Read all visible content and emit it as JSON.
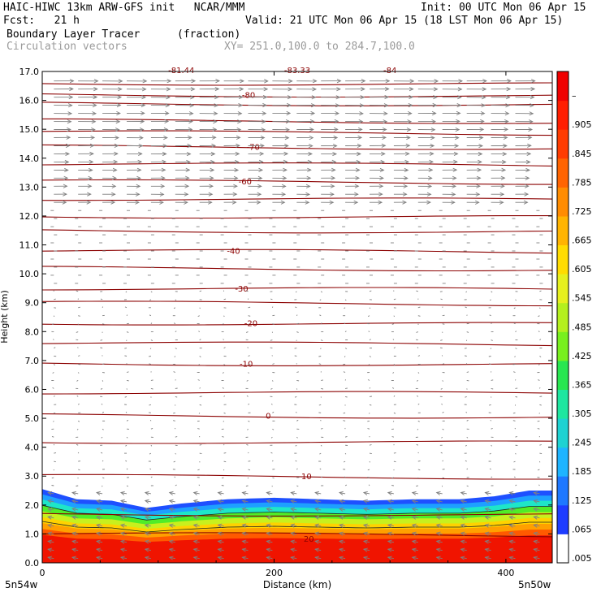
{
  "header": {
    "title_left": "HAIC-HIWC 13km ARW-GFS init   NCAR/MMM",
    "init": "Init: 00 UTC Mon 06 Apr 15",
    "fcst": "Fcst:   21 h",
    "valid": "Valid: 21 UTC Mon 06 Apr 15 (18 LST Mon 06 Apr 15)",
    "field_name": "Boundary Layer Tracer",
    "field_units": "(fraction)",
    "vector_name": "Circulation vectors",
    "xy_range": "XY= 251.0,100.0 to 284.7,100.0"
  },
  "axes": {
    "ylabel": "Height (km)",
    "xlabel": "Distance (km)",
    "left_point": "5n54w",
    "right_point": "5n50w"
  },
  "chart_data": {
    "type": "heatmap",
    "x_range_km": [
      0,
      440
    ],
    "y_range_km": [
      0,
      17
    ],
    "x_ticks": [
      "0",
      "200",
      "400"
    ],
    "x_tick_values": [
      0,
      200,
      400
    ],
    "y_ticks": [
      "0.0",
      "1.0",
      "2.0",
      "3.0",
      "4.0",
      "5.0",
      "6.0",
      "7.0",
      "8.0",
      "9.0",
      "10.0",
      "11.0",
      "12.0",
      "13.0",
      "14.0",
      "15.0",
      "16.0",
      "17.0"
    ],
    "y_tick_values": [
      0,
      1,
      2,
      3,
      4,
      5,
      6,
      7,
      8,
      9,
      10,
      11,
      12,
      13,
      14,
      15,
      16,
      17
    ],
    "colorbar_labels": [
      ".005",
      ".065",
      ".125",
      ".185",
      ".245",
      ".305",
      ".365",
      ".425",
      ".485",
      ".545",
      ".605",
      ".665",
      ".725",
      ".785",
      ".845",
      ".905",
      "–"
    ],
    "colorbar_colors": [
      "#ffffff",
      "#1e3cff",
      "#1e78ff",
      "#1eb4ff",
      "#1ed2d2",
      "#1ee6a0",
      "#28e650",
      "#78f01e",
      "#b4f01e",
      "#e6f01e",
      "#ffdc00",
      "#ffb400",
      "#ff8c00",
      "#ff6400",
      "#ff3c00",
      "#ff1e00",
      "#f00000"
    ],
    "tracer_top_km": [
      2.55,
      2.2,
      2.15,
      1.9,
      2.05,
      2.2,
      2.25,
      2.2,
      2.15,
      2.2,
      2.2,
      2.3,
      2.5,
      2.5
    ],
    "tracer_top_x_km": [
      0,
      30,
      60,
      90,
      120,
      160,
      200,
      240,
      280,
      320,
      360,
      390,
      420,
      440
    ],
    "temperature_contours": [
      {
        "label": "20",
        "height_km": 1.0
      },
      {
        "label": "10",
        "height_km": 3.0
      },
      {
        "label": "0",
        "height_km": 5.1
      },
      {
        "label": "-10",
        "height_km": 6.9
      },
      {
        "label": "-20",
        "height_km": 8.3
      },
      {
        "label": "-30",
        "height_km": 9.5
      },
      {
        "label": "-40",
        "height_km": 10.8
      },
      {
        "label": "-60",
        "height_km": 13.2
      },
      {
        "label": "-70",
        "height_km": 14.4
      },
      {
        "label": "-80",
        "height_km": 16.2
      },
      {
        "label": "-83.33",
        "height_km": 17.1
      },
      {
        "label": "-84",
        "height_km": 17.1
      },
      {
        "label": "-81.44",
        "height_km": 17.1
      }
    ],
    "contour_color": "#8b0000",
    "vector_color": "#808080"
  }
}
